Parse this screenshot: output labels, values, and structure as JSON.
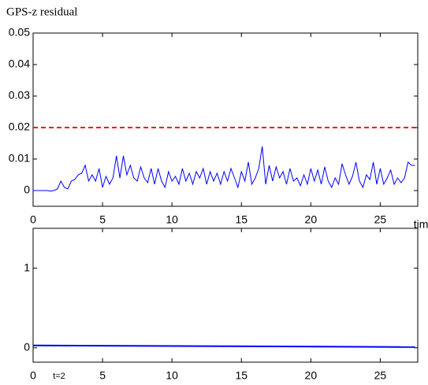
{
  "chart_data": [
    {
      "type": "line",
      "title": "GPS-z residual",
      "x_label": "time",
      "x": [
        0,
        0.25,
        0.5,
        0.75,
        1,
        1.25,
        1.5,
        1.75,
        2,
        2.25,
        2.5,
        2.75,
        3,
        3.25,
        3.5,
        3.75,
        4,
        4.25,
        4.5,
        4.75,
        5,
        5.25,
        5.5,
        5.75,
        6,
        6.25,
        6.5,
        6.75,
        7,
        7.25,
        7.5,
        7.75,
        8,
        8.25,
        8.5,
        8.75,
        9,
        9.25,
        9.5,
        9.75,
        10,
        10.25,
        10.5,
        10.75,
        11,
        11.25,
        11.5,
        11.75,
        12,
        12.25,
        12.5,
        12.75,
        13,
        13.25,
        13.5,
        13.75,
        14,
        14.25,
        14.5,
        14.75,
        15,
        15.25,
        15.5,
        15.75,
        16,
        16.25,
        16.5,
        16.75,
        17,
        17.25,
        17.5,
        17.75,
        18,
        18.25,
        18.5,
        18.75,
        19,
        19.25,
        19.5,
        19.75,
        20,
        20.25,
        20.5,
        20.75,
        21,
        21.25,
        21.5,
        21.75,
        22,
        22.25,
        22.5,
        22.75,
        23,
        23.25,
        23.5,
        23.75,
        24,
        24.25,
        24.5,
        24.75,
        25,
        25.25,
        25.5,
        25.75,
        26,
        26.25,
        26.5,
        26.75,
        27,
        27.25,
        27.5
      ],
      "series": [
        {
          "color": "#0000ff",
          "values": [
            0,
            0,
            0,
            0,
            0,
            -0.0002,
            0,
            0.0005,
            0.003,
            0.001,
            0.0005,
            0.003,
            0.0035,
            0.005,
            0.0055,
            0.008,
            0.003,
            0.005,
            0.003,
            0.007,
            0.001,
            0.0045,
            0.002,
            0.004,
            0.011,
            0.004,
            0.011,
            0.005,
            0.008,
            0.004,
            0.003,
            0.0075,
            0.004,
            0.0025,
            0.007,
            0.002,
            0.007,
            0.003,
            0.001,
            0.006,
            0.003,
            0.0045,
            0.002,
            0.007,
            0.003,
            0.0055,
            0.002,
            0.006,
            0.004,
            0.007,
            0.002,
            0.006,
            0.003,
            0.0055,
            0.002,
            0.006,
            0.003,
            0.007,
            0.004,
            0.001,
            0.006,
            0.003,
            0.009,
            0.002,
            0.004,
            0.007,
            0.014,
            0.002,
            0.008,
            0.003,
            0.0075,
            0.004,
            0.006,
            0.002,
            0.007,
            0.003,
            0.004,
            0.0015,
            0.005,
            0.002,
            0.007,
            0.003,
            0.0065,
            0.002,
            0.0075,
            0.003,
            0.001,
            0.004,
            0.002,
            0.0085,
            0.005,
            0.002,
            0.0045,
            0.009,
            0.003,
            0.001,
            0.005,
            0.0035,
            0.009,
            0.002,
            0.007,
            0.002,
            0.004,
            0.0065,
            0.002,
            0.004,
            0.0025,
            0.004,
            0.009,
            0.008,
            0.008
          ]
        }
      ],
      "hlines": [
        {
          "y": 0.02,
          "color": "#ff0000",
          "style": "dashed"
        }
      ],
      "xlim": [
        0,
        27.7
      ],
      "ylim": [
        -0.005,
        0.05
      ],
      "xticks": [
        0,
        5,
        10,
        15,
        20,
        25
      ],
      "yticks": [
        0,
        0.01,
        0.02,
        0.03,
        0.04,
        0.05
      ]
    },
    {
      "type": "line",
      "annotation": "t=2",
      "x": [
        0,
        27.5
      ],
      "series": [
        {
          "color": "#0000ff",
          "values": [
            0.03,
            0.01
          ]
        }
      ],
      "xlim": [
        0,
        27.7
      ],
      "ylim": [
        -0.18,
        1.5
      ],
      "xticks": [
        0,
        5,
        10,
        15,
        20,
        25
      ],
      "yticks": [
        0,
        1
      ]
    }
  ]
}
